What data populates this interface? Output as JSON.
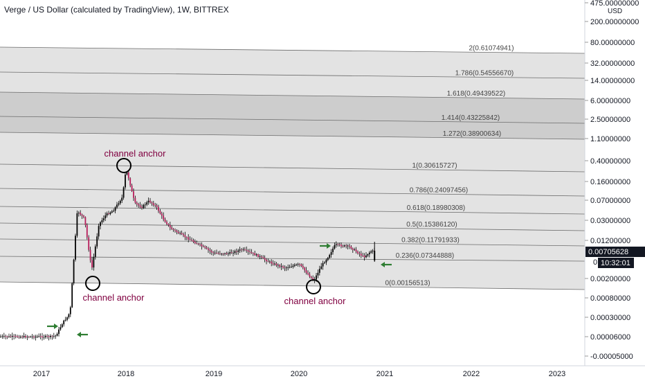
{
  "header": {
    "title": "Verge / US Dollar (calculated by TradingView), 1W, BITTREX"
  },
  "price_axis": {
    "currency": "USD",
    "current_price": "0.00705628",
    "countdown": "10:32:01",
    "clipped_label": "0."
  },
  "chart_data": {
    "type": "candlestick",
    "title": "Verge / US Dollar (calculated by TradingView), 1W, BITTREX",
    "scale": "log",
    "y_ticks": [
      "475.00000000",
      "200.00000000",
      "80.00000000",
      "32.00000000",
      "14.00000000",
      "6.00000000",
      "2.50000000",
      "1.10000000",
      "0.40000000",
      "0.16000000",
      "0.07000000",
      "0.03000000",
      "0.01200000",
      "0.00200000",
      "0.00080000",
      "0.00030000",
      "0.00006000",
      "-0.00005000"
    ],
    "x_ticks": [
      "2017",
      "2018",
      "2019",
      "2020",
      "2021",
      "2022",
      "2023"
    ],
    "price_path": [
      [
        "2016-07",
        6e-05
      ],
      [
        "2016-10",
        5.5e-05
      ],
      [
        "2017-01",
        5.2e-05
      ],
      [
        "2017-03",
        6.5e-05
      ],
      [
        "2017-04",
        0.0002
      ],
      [
        "2017-05",
        0.0004
      ],
      [
        "2017-05-20",
        0.009
      ],
      [
        "2017-06",
        0.045
      ],
      [
        "2017-07",
        0.032
      ],
      [
        "2017-08",
        0.003
      ],
      [
        "2017-09",
        0.025
      ],
      [
        "2017-10",
        0.038
      ],
      [
        "2017-11",
        0.045
      ],
      [
        "2017-12-10",
        0.08
      ],
      [
        "2017-12-24",
        0.25
      ],
      [
        "2018-01-01",
        0.23
      ],
      [
        "2018-02",
        0.062
      ],
      [
        "2018-03",
        0.052
      ],
      [
        "2018-04",
        0.068
      ],
      [
        "2018-05",
        0.054
      ],
      [
        "2018-06",
        0.032
      ],
      [
        "2018-07",
        0.021
      ],
      [
        "2018-09",
        0.0142
      ],
      [
        "2018-11",
        0.0098
      ],
      [
        "2019-01",
        0.0066
      ],
      [
        "2019-03",
        0.0064
      ],
      [
        "2019-05",
        0.0078
      ],
      [
        "2019-07",
        0.006
      ],
      [
        "2019-09",
        0.0042
      ],
      [
        "2019-11",
        0.0033
      ],
      [
        "2020-01",
        0.0039
      ],
      [
        "2020-03",
        0.0018
      ],
      [
        "2020-04",
        0.0035
      ],
      [
        "2020-05",
        0.0055
      ],
      [
        "2020-06",
        0.0098
      ],
      [
        "2020-08",
        0.0089
      ],
      [
        "2020-10",
        0.0055
      ],
      [
        "2020-11",
        0.0072
      ]
    ],
    "fib_levels": [
      {
        "label": "2(0.61074941)"
      },
      {
        "label": "1.786(0.54556670)"
      },
      {
        "label": "1.618(0.49439522)"
      },
      {
        "label": "1.414(0.43225842)"
      },
      {
        "label": "1.272(0.38900634)"
      },
      {
        "label": "1(0.30615727)"
      },
      {
        "label": "0.786(0.24097456)"
      },
      {
        "label": "0.618(0.18980308)"
      },
      {
        "label": "0.5(0.15386120)"
      },
      {
        "label": "0.382(0.11791933)"
      },
      {
        "label": "0.236(0.07344888)"
      },
      {
        "label": "0(0.00156513)"
      }
    ],
    "annotations": [
      "channel anchor",
      "channel anchor",
      "channel anchor"
    ],
    "colors": {
      "up": "#26a69a",
      "down": "#b71c5a",
      "candle": "#000000",
      "anchor_text": "#800040",
      "arrow": "#2e7d32",
      "band": "#e0e0e0",
      "band_dark": "#c8c8c8",
      "last_price_bg": "#131722"
    }
  }
}
